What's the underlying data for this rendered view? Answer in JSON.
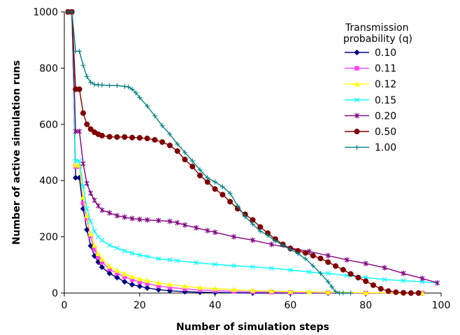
{
  "chart_data": {
    "type": "line",
    "title": "",
    "xlabel": "Number of simulation steps",
    "ylabel": "Number of active simulation runs",
    "xlim": [
      0,
      100
    ],
    "ylim": [
      0,
      1000
    ],
    "xticks": [
      "0",
      "20",
      "40",
      "60",
      "80",
      "100"
    ],
    "yticks": [
      "0",
      "200",
      "400",
      "600",
      "800",
      "1000"
    ],
    "grid": false,
    "legend": {
      "title": "Transmission probability (q)",
      "placement": "top-right",
      "entries": [
        "0.10",
        "0.11",
        "0.12",
        "0.15",
        "0.20",
        "0.50",
        "1.00"
      ]
    },
    "series": [
      {
        "name": "0.10",
        "color": "#000080",
        "marker": "diamond",
        "points": [
          [
            1,
            1000
          ],
          [
            2,
            1000
          ],
          [
            3,
            410
          ],
          [
            4,
            410
          ],
          [
            5,
            300
          ],
          [
            6,
            225
          ],
          [
            7,
            168
          ],
          [
            8,
            132
          ],
          [
            9,
            110
          ],
          [
            10,
            92
          ],
          [
            12,
            70
          ],
          [
            14,
            55
          ],
          [
            16,
            40
          ],
          [
            18,
            30
          ],
          [
            20,
            24
          ],
          [
            22,
            18
          ],
          [
            25,
            12
          ],
          [
            28,
            8
          ],
          [
            32,
            5
          ],
          [
            36,
            3
          ],
          [
            40,
            2
          ],
          [
            50,
            0
          ],
          [
            60,
            0
          ],
          [
            70,
            0
          ],
          [
            80,
            0
          ],
          [
            90,
            0
          ],
          [
            95,
            0
          ]
        ]
      },
      {
        "name": "0.11",
        "color": "#FF40FF",
        "marker": "square",
        "points": [
          [
            1,
            1000
          ],
          [
            2,
            1000
          ],
          [
            3,
            450
          ],
          [
            4,
            450
          ],
          [
            5,
            320
          ],
          [
            6,
            265
          ],
          [
            7,
            200
          ],
          [
            8,
            155
          ],
          [
            9,
            128
          ],
          [
            10,
            110
          ],
          [
            12,
            85
          ],
          [
            14,
            70
          ],
          [
            16,
            58
          ],
          [
            18,
            48
          ],
          [
            20,
            40
          ],
          [
            22,
            34
          ],
          [
            25,
            25
          ],
          [
            28,
            20
          ],
          [
            32,
            15
          ],
          [
            36,
            11
          ],
          [
            40,
            9
          ],
          [
            45,
            6
          ],
          [
            50,
            4
          ],
          [
            55,
            3
          ],
          [
            60,
            2
          ],
          [
            70,
            1
          ],
          [
            80,
            0
          ],
          [
            90,
            0
          ],
          [
            95,
            0
          ]
        ]
      },
      {
        "name": "0.12",
        "color": "#FFFF00",
        "marker": "triangle",
        "points": [
          [
            1,
            1000
          ],
          [
            2,
            1000
          ],
          [
            3,
            455
          ],
          [
            4,
            455
          ],
          [
            5,
            340
          ],
          [
            6,
            275
          ],
          [
            7,
            210
          ],
          [
            8,
            170
          ],
          [
            9,
            140
          ],
          [
            10,
            120
          ],
          [
            12,
            95
          ],
          [
            14,
            80
          ],
          [
            16,
            68
          ],
          [
            18,
            58
          ],
          [
            20,
            50
          ],
          [
            22,
            44
          ],
          [
            25,
            36
          ],
          [
            28,
            30
          ],
          [
            32,
            24
          ],
          [
            36,
            19
          ],
          [
            40,
            16
          ],
          [
            45,
            12
          ],
          [
            50,
            9
          ],
          [
            55,
            7
          ],
          [
            60,
            5
          ],
          [
            65,
            4
          ],
          [
            70,
            3
          ],
          [
            80,
            1
          ],
          [
            90,
            0
          ],
          [
            95,
            0
          ]
        ]
      },
      {
        "name": "0.15",
        "color": "#00FFFF",
        "marker": "x",
        "points": [
          [
            1,
            1000
          ],
          [
            2,
            1000
          ],
          [
            3,
            470
          ],
          [
            4,
            470
          ],
          [
            5,
            380
          ],
          [
            6,
            300
          ],
          [
            7,
            255
          ],
          [
            8,
            220
          ],
          [
            9,
            200
          ],
          [
            10,
            188
          ],
          [
            12,
            170
          ],
          [
            14,
            160
          ],
          [
            16,
            150
          ],
          [
            18,
            142
          ],
          [
            20,
            135
          ],
          [
            22,
            130
          ],
          [
            25,
            122
          ],
          [
            28,
            118
          ],
          [
            30,
            115
          ],
          [
            35,
            108
          ],
          [
            40,
            102
          ],
          [
            45,
            97
          ],
          [
            50,
            93
          ],
          [
            55,
            88
          ],
          [
            60,
            82
          ],
          [
            65,
            75
          ],
          [
            70,
            70
          ],
          [
            75,
            62
          ],
          [
            80,
            55
          ],
          [
            85,
            48
          ],
          [
            90,
            44
          ],
          [
            95,
            40
          ],
          [
            99,
            36
          ]
        ]
      },
      {
        "name": "0.20",
        "color": "#800080",
        "marker": "star",
        "points": [
          [
            1,
            1000
          ],
          [
            2,
            1000
          ],
          [
            3,
            575
          ],
          [
            4,
            575
          ],
          [
            5,
            460
          ],
          [
            6,
            390
          ],
          [
            7,
            355
          ],
          [
            8,
            330
          ],
          [
            9,
            310
          ],
          [
            10,
            295
          ],
          [
            12,
            285
          ],
          [
            14,
            275
          ],
          [
            16,
            270
          ],
          [
            18,
            265
          ],
          [
            20,
            262
          ],
          [
            22,
            260
          ],
          [
            25,
            258
          ],
          [
            28,
            255
          ],
          [
            30,
            250
          ],
          [
            32,
            242
          ],
          [
            35,
            232
          ],
          [
            38,
            222
          ],
          [
            40,
            216
          ],
          [
            45,
            200
          ],
          [
            50,
            188
          ],
          [
            55,
            173
          ],
          [
            60,
            160
          ],
          [
            65,
            148
          ],
          [
            70,
            133
          ],
          [
            75,
            118
          ],
          [
            80,
            105
          ],
          [
            85,
            90
          ],
          [
            90,
            70
          ],
          [
            95,
            52
          ],
          [
            99,
            36
          ]
        ]
      },
      {
        "name": "0.50",
        "color": "#800000",
        "marker": "circle",
        "points": [
          [
            1,
            1000
          ],
          [
            2,
            1000
          ],
          [
            3,
            725
          ],
          [
            4,
            725
          ],
          [
            5,
            640
          ],
          [
            6,
            600
          ],
          [
            7,
            583
          ],
          [
            8,
            572
          ],
          [
            9,
            565
          ],
          [
            10,
            560
          ],
          [
            12,
            556
          ],
          [
            14,
            555
          ],
          [
            16,
            555
          ],
          [
            18,
            553
          ],
          [
            20,
            552
          ],
          [
            22,
            550
          ],
          [
            24,
            545
          ],
          [
            26,
            537
          ],
          [
            28,
            525
          ],
          [
            30,
            505
          ],
          [
            32,
            475
          ],
          [
            34,
            450
          ],
          [
            36,
            418
          ],
          [
            38,
            395
          ],
          [
            40,
            370
          ],
          [
            42,
            350
          ],
          [
            44,
            325
          ],
          [
            46,
            300
          ],
          [
            48,
            280
          ],
          [
            50,
            260
          ],
          [
            52,
            235
          ],
          [
            54,
            213
          ],
          [
            56,
            192
          ],
          [
            58,
            173
          ],
          [
            60,
            158
          ],
          [
            62,
            150
          ],
          [
            64,
            143
          ],
          [
            66,
            133
          ],
          [
            68,
            123
          ],
          [
            70,
            110
          ],
          [
            72,
            96
          ],
          [
            74,
            83
          ],
          [
            76,
            68
          ],
          [
            78,
            55
          ],
          [
            80,
            42
          ],
          [
            82,
            28
          ],
          [
            84,
            15
          ],
          [
            86,
            7
          ],
          [
            88,
            3
          ],
          [
            90,
            1
          ],
          [
            92,
            0
          ],
          [
            94,
            0
          ]
        ]
      },
      {
        "name": "1.00",
        "color": "#008080",
        "marker": "plus",
        "points": [
          [
            1,
            1000
          ],
          [
            2,
            1000
          ],
          [
            3,
            860
          ],
          [
            4,
            860
          ],
          [
            5,
            810
          ],
          [
            6,
            770
          ],
          [
            7,
            750
          ],
          [
            8,
            742
          ],
          [
            9,
            740
          ],
          [
            10,
            740
          ],
          [
            12,
            738
          ],
          [
            14,
            738
          ],
          [
            16,
            735
          ],
          [
            17,
            733
          ],
          [
            18,
            725
          ],
          [
            19,
            712
          ],
          [
            20,
            695
          ],
          [
            22,
            665
          ],
          [
            24,
            630
          ],
          [
            26,
            595
          ],
          [
            28,
            565
          ],
          [
            30,
            530
          ],
          [
            32,
            500
          ],
          [
            34,
            470
          ],
          [
            36,
            438
          ],
          [
            38,
            410
          ],
          [
            40,
            395
          ],
          [
            42,
            378
          ],
          [
            44,
            355
          ],
          [
            46,
            310
          ],
          [
            48,
            272
          ],
          [
            50,
            245
          ],
          [
            52,
            220
          ],
          [
            54,
            205
          ],
          [
            56,
            185
          ],
          [
            58,
            170
          ],
          [
            60,
            155
          ],
          [
            62,
            140
          ],
          [
            64,
            122
          ],
          [
            66,
            97
          ],
          [
            68,
            70
          ],
          [
            70,
            40
          ],
          [
            71,
            22
          ],
          [
            72,
            5
          ],
          [
            73,
            0
          ],
          [
            74,
            0
          ],
          [
            76,
            0
          ]
        ]
      }
    ]
  }
}
